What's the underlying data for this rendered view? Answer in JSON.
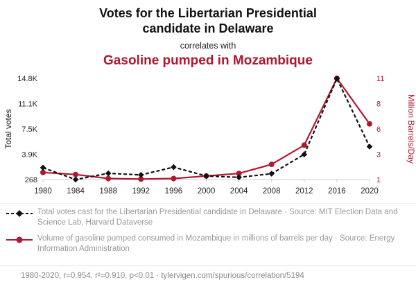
{
  "header": {
    "title": "Votes for the Libertarian Presidential candidate in Delaware",
    "connector": "correlates with",
    "subtitle": "Gasoline pumped in Mozambique"
  },
  "chart_data": {
    "type": "line",
    "x": [
      1980,
      1984,
      1988,
      1992,
      1996,
      2000,
      2004,
      2008,
      2012,
      2016,
      2020
    ],
    "series": [
      {
        "name": "Total votes cast for the Libertarian Presidential candidate in Delaware",
        "axis": "left",
        "color": "#111111",
        "style": "dashed",
        "marker": "diamond",
        "values": [
          1974,
          268,
          1162,
          935,
          2052,
          774,
          586,
          1109,
          3882,
          14757,
          5000
        ]
      },
      {
        "name": "Volume of gasoline pumped consumed in Mozambique",
        "axis": "right",
        "color": "#b01830",
        "style": "solid",
        "marker": "circle",
        "values": [
          1.7,
          1.5,
          1.1,
          1.05,
          1.1,
          1.35,
          1.6,
          2.5,
          4.4,
          11,
          6.5
        ]
      }
    ],
    "left_axis": {
      "label": "Total votes",
      "min": 268,
      "max": 14800,
      "tick_labels": [
        "268",
        "3.9K",
        "7.5K",
        "11.1K",
        "14.8K"
      ]
    },
    "right_axis": {
      "label": "Million Barrels/Day",
      "min": 1,
      "max": 11,
      "tick_labels": [
        "1",
        "3",
        "6",
        "8",
        "11"
      ]
    },
    "grid": false,
    "legend_position": "below"
  },
  "legend": [
    {
      "text": "Total votes cast for the Libertarian Presidential candidate in Delaware · Source: MIT Election Data and Science Lab, Harvard Dataverse"
    },
    {
      "text": "Volume of gasoline pumped consumed in Mozambique in millions of barrels per day · Source: Energy Information Administration"
    }
  ],
  "footer": {
    "text": "1980-2020, r=0.954, r²=0.910, p<0.01 · tylervigen.com/spurious/correlation/5194"
  },
  "colors": {
    "accent_red": "#b01830",
    "series_black": "#111111",
    "legend_gray": "#999999",
    "footer_gray": "#8a8a8a"
  }
}
